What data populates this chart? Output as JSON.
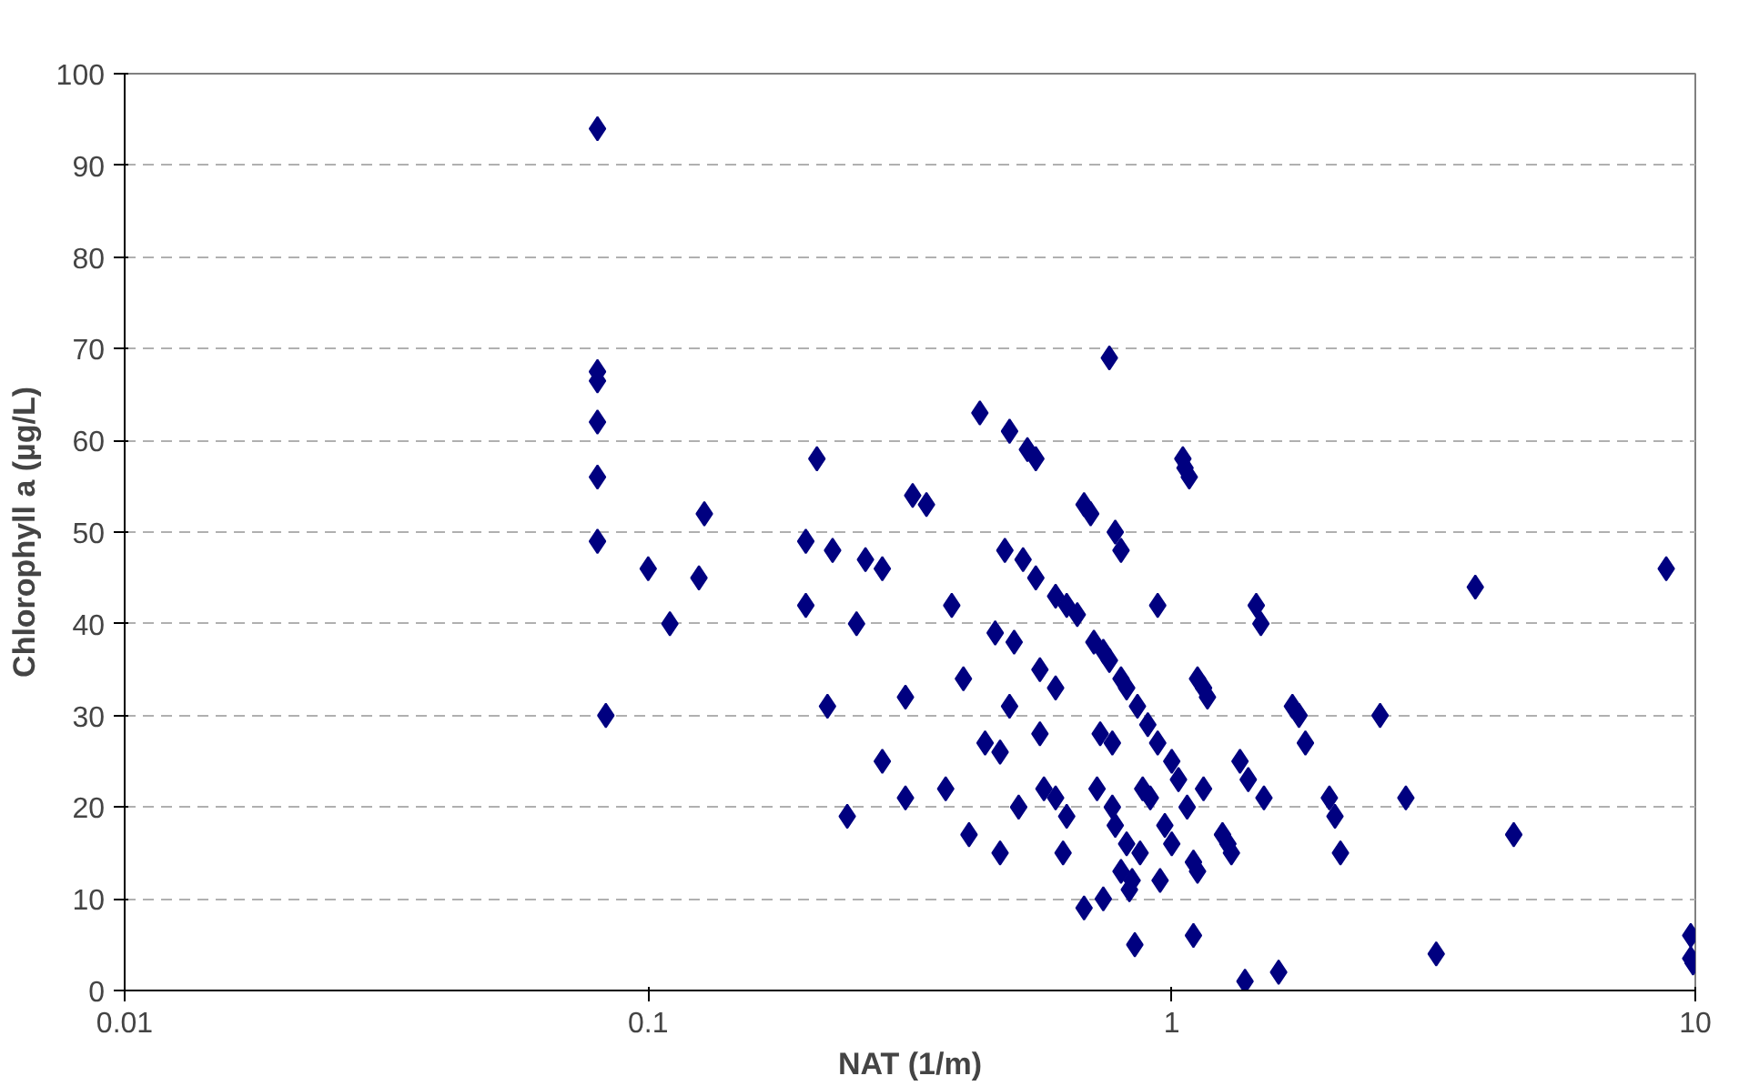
{
  "chart_data": {
    "type": "scatter",
    "xlabel": "NAT (1/m)",
    "ylabel": "Chlorophyll a (µg/L)",
    "log": "x",
    "xlim": [
      0.01,
      10
    ],
    "xticks": [
      0.01,
      0.1,
      1,
      10
    ],
    "ylim": [
      0,
      100
    ],
    "yticks": [
      0,
      10,
      20,
      30,
      40,
      50,
      60,
      70,
      80,
      90,
      100
    ],
    "grid": "y",
    "marker": "diamond",
    "series": [
      {
        "color": "#000080",
        "x": [
          0.08,
          0.08,
          0.08,
          0.08,
          0.08,
          0.08,
          0.083,
          0.1,
          0.11,
          0.125,
          0.128,
          0.2,
          0.2,
          0.21,
          0.22,
          0.225,
          0.24,
          0.25,
          0.26,
          0.28,
          0.28,
          0.31,
          0.31,
          0.32,
          0.34,
          0.37,
          0.38,
          0.4,
          0.41,
          0.43,
          0.44,
          0.46,
          0.47,
          0.47,
          0.48,
          0.49,
          0.49,
          0.5,
          0.51,
          0.52,
          0.53,
          0.55,
          0.55,
          0.56,
          0.56,
          0.57,
          0.6,
          0.6,
          0.6,
          0.62,
          0.63,
          0.63,
          0.66,
          0.68,
          0.68,
          0.7,
          0.71,
          0.72,
          0.73,
          0.74,
          0.74,
          0.76,
          0.76,
          0.77,
          0.77,
          0.78,
          0.78,
          0.8,
          0.8,
          0.8,
          0.82,
          0.82,
          0.83,
          0.84,
          0.85,
          0.86,
          0.87,
          0.88,
          0.9,
          0.91,
          0.94,
          0.94,
          0.95,
          0.97,
          1.0,
          1.0,
          1.03,
          1.05,
          1.06,
          1.07,
          1.08,
          1.1,
          1.1,
          1.12,
          1.12,
          1.15,
          1.15,
          1.17,
          1.25,
          1.28,
          1.3,
          1.35,
          1.38,
          1.4,
          1.45,
          1.48,
          1.5,
          1.6,
          1.7,
          1.75,
          1.8,
          2.0,
          2.05,
          2.1,
          2.5,
          2.8,
          3.2,
          3.8,
          4.5,
          8.8,
          9.8,
          9.8,
          9.9
        ],
        "values": [
          94,
          67.5,
          66.5,
          62,
          56,
          49,
          30,
          46,
          40,
          45,
          52,
          49,
          42,
          58,
          31,
          48,
          19,
          40,
          47,
          46,
          25,
          32,
          21,
          54,
          53,
          22,
          42,
          34,
          17,
          63,
          27,
          39,
          26,
          15,
          48,
          61,
          31,
          38,
          20,
          47,
          59,
          45,
          58,
          35,
          28,
          22,
          21,
          43,
          33,
          15,
          42,
          19,
          41,
          9,
          53,
          52,
          38,
          22,
          28,
          37,
          10,
          36,
          69,
          20,
          27,
          50,
          18,
          48,
          13,
          34,
          33,
          16,
          11,
          12,
          5,
          31,
          15,
          22,
          29,
          21,
          42,
          27,
          12,
          18,
          25,
          16,
          23,
          58,
          57,
          20,
          56,
          6,
          14,
          13,
          34,
          22,
          33,
          32,
          17,
          16,
          15,
          25,
          1,
          23,
          42,
          40,
          21,
          2,
          31,
          30,
          27,
          21,
          19,
          15,
          30,
          21,
          4,
          44,
          17,
          46,
          6,
          3.5,
          3
        ]
      }
    ]
  }
}
